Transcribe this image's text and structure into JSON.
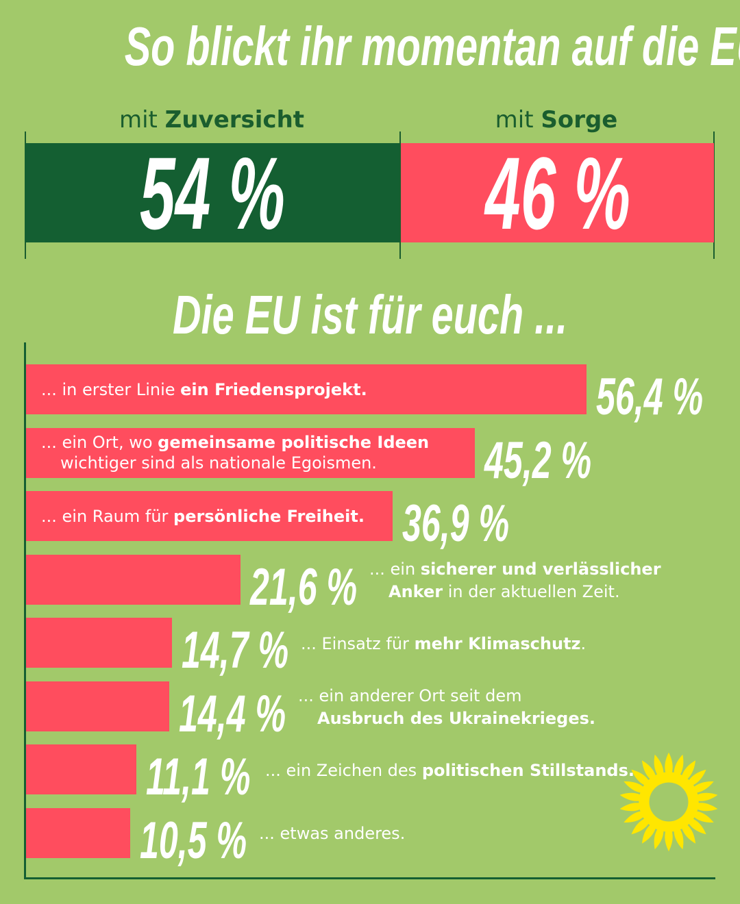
{
  "title": "So blickt ihr momentan auf die EU",
  "top_chart": {
    "left": {
      "prefix": "mit",
      "label": "Zuversicht",
      "value": 54,
      "value_label": "54 %"
    },
    "right": {
      "prefix": "mit",
      "label": "Sorge",
      "value": 46,
      "value_label": "46 %"
    },
    "colors": {
      "left": "#145f32",
      "right": "#ff4d5e",
      "label": "#1a5d2e"
    }
  },
  "subtitle": "Die EU ist für euch ...",
  "chart_data": {
    "type": "bar",
    "orientation": "horizontal",
    "title": "Die EU ist für euch ...",
    "unit": "%",
    "bar_color": "#ff4d5e",
    "xlim": [
      0,
      60
    ],
    "items": [
      {
        "value": 56.4,
        "value_label": "56,4 %",
        "line1": {
          "pre": "... in erster Linie ",
          "bold": "ein Friedensprojekt.",
          "post": ""
        },
        "line2": null,
        "text_inside": true
      },
      {
        "value": 45.2,
        "value_label": "45,2 %",
        "line1": {
          "pre": "... ein Ort, wo ",
          "bold": "gemeinsame politische Ideen",
          "post": ""
        },
        "line2": {
          "pre": "wichtiger sind als nationale Egoismen.",
          "bold": "",
          "post": ""
        },
        "text_inside": true
      },
      {
        "value": 36.9,
        "value_label": "36,9 %",
        "line1": {
          "pre": "... ein Raum für ",
          "bold": "persönliche Freiheit.",
          "post": ""
        },
        "line2": null,
        "text_inside": true
      },
      {
        "value": 21.6,
        "value_label": "21,6 %",
        "line1": {
          "pre": "... ein ",
          "bold": "sicherer und verlässlicher",
          "post": ""
        },
        "line2": {
          "pre": "",
          "bold": "Anker",
          "post": " in der aktuellen Zeit."
        },
        "text_inside": false
      },
      {
        "value": 14.7,
        "value_label": "14,7 %",
        "line1": {
          "pre": "... Einsatz für ",
          "bold": "mehr Klimaschutz",
          "post": "."
        },
        "line2": null,
        "text_inside": false
      },
      {
        "value": 14.4,
        "value_label": "14,4 %",
        "line1": {
          "pre": "... ein anderer Ort seit dem",
          "bold": "",
          "post": ""
        },
        "line2": {
          "pre": "",
          "bold": "Ausbruch des Ukrainekrieges.",
          "post": ""
        },
        "text_inside": false
      },
      {
        "value": 11.1,
        "value_label": "11,1 %",
        "line1": {
          "pre": "... ein Zeichen des ",
          "bold": "politischen Stillstands.",
          "post": ""
        },
        "line2": null,
        "text_inside": false
      },
      {
        "value": 10.5,
        "value_label": "10,5 %",
        "line1": {
          "pre": "... etwas anderes.",
          "bold": "",
          "post": ""
        },
        "line2": null,
        "text_inside": false
      }
    ]
  },
  "logo": {
    "name": "sunflower-logo",
    "colors": {
      "petals": "#ffe600",
      "center": "#a2c96a"
    }
  }
}
